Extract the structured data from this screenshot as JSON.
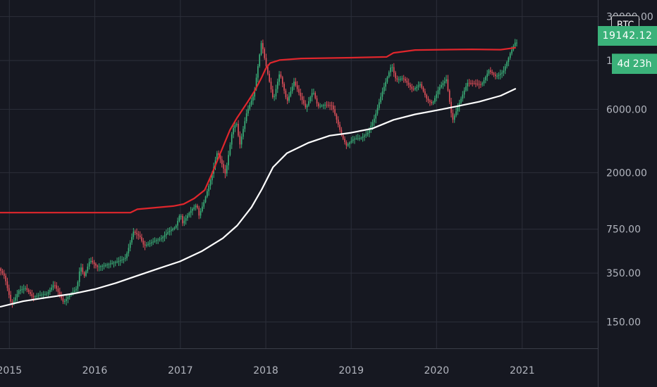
{
  "symbol": "BTC",
  "colors": {
    "background": "#161821",
    "up": "#3bb27a",
    "down": "#e0505a",
    "ma_red": "#e0262c",
    "ma_white": "#ffffff",
    "grid": "#2c2f3a"
  },
  "price_tag": "19142.12",
  "countdown": "4d 23h",
  "chart_data": {
    "type": "candlestick",
    "scale": "log",
    "grid": true,
    "y_ticks": [
      "30000.00",
      "14000.00",
      "6000.00",
      "2000.00",
      "750.00",
      "350.00",
      "150.00"
    ],
    "y_tick_values": [
      30000,
      14000,
      6000,
      2000,
      750,
      350,
      150
    ],
    "x_ticks": [
      "2015",
      "2016",
      "2017",
      "2018",
      "2019",
      "2020",
      "2021"
    ],
    "ylim": [
      95,
      40000
    ],
    "xlim": [
      "2014-11-22",
      "2021-11-20"
    ],
    "price_path": [
      [
        "2014-11-22",
        380
      ],
      [
        "2014-12-15",
        330
      ],
      [
        "2015-01-14",
        200
      ],
      [
        "2015-02-15",
        260
      ],
      [
        "2015-03-15",
        270
      ],
      [
        "2015-04-15",
        230
      ],
      [
        "2015-05-15",
        240
      ],
      [
        "2015-06-15",
        245
      ],
      [
        "2015-07-15",
        290
      ],
      [
        "2015-08-24",
        210
      ],
      [
        "2015-09-15",
        235
      ],
      [
        "2015-10-20",
        270
      ],
      [
        "2015-11-04",
        400
      ],
      [
        "2015-11-20",
        330
      ],
      [
        "2015-12-15",
        440
      ],
      [
        "2016-01-15",
        390
      ],
      [
        "2016-02-15",
        400
      ],
      [
        "2016-03-15",
        415
      ],
      [
        "2016-04-15",
        430
      ],
      [
        "2016-05-15",
        455
      ],
      [
        "2016-06-18",
        720
      ],
      [
        "2016-07-15",
        660
      ],
      [
        "2016-08-02",
        560
      ],
      [
        "2016-09-15",
        610
      ],
      [
        "2016-10-15",
        640
      ],
      [
        "2016-11-15",
        720
      ],
      [
        "2016-12-15",
        780
      ],
      [
        "2017-01-05",
        1000
      ],
      [
        "2017-01-12",
        820
      ],
      [
        "2017-02-15",
        1020
      ],
      [
        "2017-03-15",
        1150
      ],
      [
        "2017-03-25",
        950
      ],
      [
        "2017-04-15",
        1200
      ],
      [
        "2017-05-15",
        1800
      ],
      [
        "2017-06-12",
        2900
      ],
      [
        "2017-07-16",
        1950
      ],
      [
        "2017-08-15",
        4200
      ],
      [
        "2017-09-01",
        4800
      ],
      [
        "2017-09-15",
        3200
      ],
      [
        "2017-10-15",
        5700
      ],
      [
        "2017-11-15",
        7800
      ],
      [
        "2017-12-17",
        19500
      ],
      [
        "2018-01-01",
        14000
      ],
      [
        "2018-02-06",
        7000
      ],
      [
        "2018-03-05",
        11400
      ],
      [
        "2018-04-05",
        6800
      ],
      [
        "2018-05-05",
        9700
      ],
      [
        "2018-06-25",
        6100
      ],
      [
        "2018-07-25",
        8300
      ],
      [
        "2018-08-15",
        6300
      ],
      [
        "2018-09-15",
        6500
      ],
      [
        "2018-10-15",
        6400
      ],
      [
        "2018-11-25",
        3800
      ],
      [
        "2018-12-15",
        3200
      ],
      [
        "2019-01-15",
        3600
      ],
      [
        "2019-02-15",
        3650
      ],
      [
        "2019-03-15",
        3950
      ],
      [
        "2019-04-15",
        5200
      ],
      [
        "2019-05-15",
        7900
      ],
      [
        "2019-06-26",
        13000
      ],
      [
        "2019-07-15",
        10000
      ],
      [
        "2019-08-15",
        10300
      ],
      [
        "2019-09-25",
        8400
      ],
      [
        "2019-10-26",
        9300
      ],
      [
        "2019-11-25",
        7100
      ],
      [
        "2019-12-18",
        6600
      ],
      [
        "2020-01-15",
        8700
      ],
      [
        "2020-02-15",
        10100
      ],
      [
        "2020-03-12",
        4900
      ],
      [
        "2020-04-15",
        7000
      ],
      [
        "2020-05-15",
        9500
      ],
      [
        "2020-06-15",
        9400
      ],
      [
        "2020-07-15",
        9200
      ],
      [
        "2020-08-15",
        11800
      ],
      [
        "2020-09-15",
        10600
      ],
      [
        "2020-10-15",
        11500
      ],
      [
        "2020-11-15",
        16000
      ],
      [
        "2020-12-05",
        19100
      ]
    ],
    "series": [
      {
        "color": "#e0262c",
        "points": [
          [
            "2014-11-22",
            1000
          ],
          [
            "2016-06-01",
            1000
          ],
          [
            "2016-07-01",
            1060
          ],
          [
            "2016-12-01",
            1120
          ],
          [
            "2017-01-15",
            1160
          ],
          [
            "2017-03-01",
            1280
          ],
          [
            "2017-04-15",
            1480
          ],
          [
            "2017-05-15",
            1950
          ],
          [
            "2017-07-01",
            3100
          ],
          [
            "2017-08-01",
            4200
          ],
          [
            "2017-09-01",
            5200
          ],
          [
            "2017-10-15",
            6800
          ],
          [
            "2017-11-15",
            8300
          ],
          [
            "2017-12-15",
            10500
          ],
          [
            "2018-01-01",
            12200
          ],
          [
            "2018-01-20",
            13400
          ],
          [
            "2018-03-01",
            14100
          ],
          [
            "2018-06-01",
            14500
          ],
          [
            "2019-01-01",
            14700
          ],
          [
            "2019-06-01",
            14900
          ],
          [
            "2019-07-01",
            16000
          ],
          [
            "2019-10-01",
            16800
          ],
          [
            "2020-06-01",
            17000
          ],
          [
            "2020-10-01",
            16900
          ],
          [
            "2020-12-05",
            17500
          ]
        ]
      },
      {
        "color": "#ffffff",
        "points": [
          [
            "2014-11-22",
            195
          ],
          [
            "2015-03-01",
            215
          ],
          [
            "2015-06-01",
            228
          ],
          [
            "2015-10-01",
            245
          ],
          [
            "2016-01-01",
            265
          ],
          [
            "2016-04-01",
            295
          ],
          [
            "2016-07-01",
            335
          ],
          [
            "2016-10-01",
            380
          ],
          [
            "2017-01-01",
            430
          ],
          [
            "2017-04-01",
            510
          ],
          [
            "2017-07-01",
            640
          ],
          [
            "2017-09-01",
            800
          ],
          [
            "2017-11-01",
            1100
          ],
          [
            "2017-12-15",
            1500
          ],
          [
            "2018-02-01",
            2200
          ],
          [
            "2018-04-01",
            2800
          ],
          [
            "2018-07-01",
            3350
          ],
          [
            "2018-10-01",
            3800
          ],
          [
            "2019-01-01",
            4000
          ],
          [
            "2019-04-01",
            4300
          ],
          [
            "2019-07-01",
            5000
          ],
          [
            "2019-10-01",
            5500
          ],
          [
            "2020-01-01",
            5900
          ],
          [
            "2020-04-01",
            6350
          ],
          [
            "2020-07-01",
            6850
          ],
          [
            "2020-10-01",
            7600
          ],
          [
            "2020-12-05",
            8600
          ]
        ]
      }
    ]
  }
}
